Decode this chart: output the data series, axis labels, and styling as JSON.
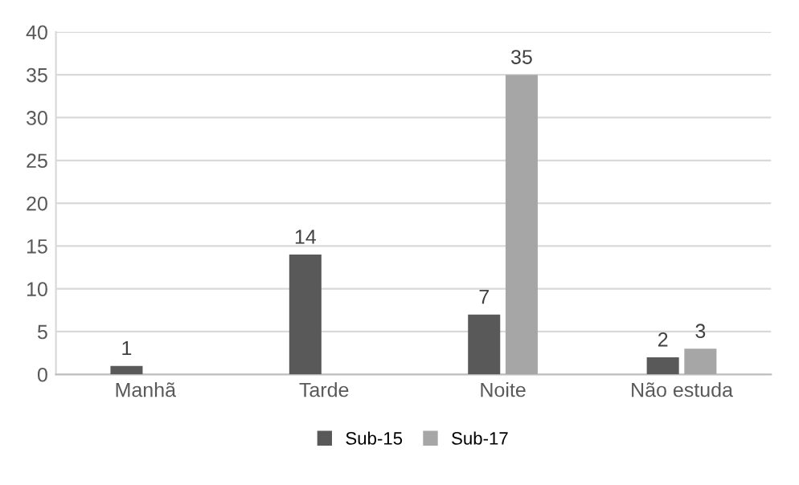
{
  "chart_data": {
    "type": "bar",
    "categories": [
      "Manhã",
      "Tarde",
      "Noite",
      "Não estuda"
    ],
    "series": [
      {
        "name": "Sub-15",
        "color": "#595959",
        "values": [
          1,
          14,
          7,
          2
        ]
      },
      {
        "name": "Sub-17",
        "color": "#a6a6a6",
        "values": [
          null,
          null,
          35,
          3
        ]
      }
    ],
    "ylim": [
      0,
      40
    ],
    "yticks": [
      0,
      5,
      10,
      15,
      20,
      25,
      30,
      35,
      40
    ],
    "grid": "y",
    "legend": "bottom",
    "data_labels": true
  }
}
